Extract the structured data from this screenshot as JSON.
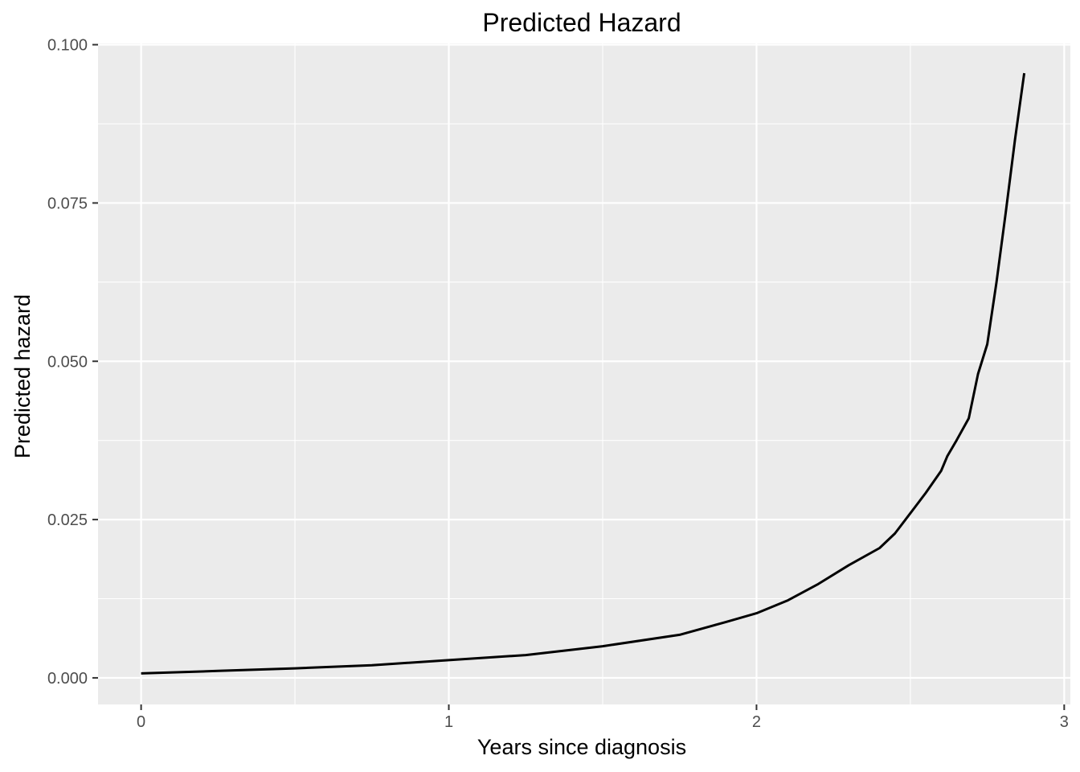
{
  "chart_data": {
    "type": "line",
    "title": "Predicted Hazard",
    "xlabel": "Years since diagnosis",
    "ylabel": "Predicted hazard",
    "xlim": [
      -0.14,
      3.02
    ],
    "ylim": [
      -0.0042,
      0.1002
    ],
    "x_ticks": [
      0,
      1,
      2,
      3
    ],
    "x_tick_labels": [
      "0",
      "1",
      "2",
      "3"
    ],
    "y_ticks": [
      0,
      0.025,
      0.05,
      0.075,
      0.1
    ],
    "y_tick_labels": [
      "0.000",
      "0.025",
      "0.050",
      "0.075",
      "0.100"
    ],
    "grid": true,
    "background": "#ebebeb",
    "line_color": "#000000",
    "series": [
      {
        "x": [
          0,
          0.25,
          0.5,
          0.75,
          1.0,
          1.25,
          1.5,
          1.75,
          1.9,
          2.0,
          2.1,
          2.2,
          2.3,
          2.4,
          2.45,
          2.5,
          2.55,
          2.6,
          2.62,
          2.65,
          2.69,
          2.72,
          2.75,
          2.78,
          2.81,
          2.84,
          2.87
        ],
        "y": [
          0.0007,
          0.0011,
          0.0015,
          0.002,
          0.0028,
          0.0036,
          0.005,
          0.0068,
          0.0088,
          0.0102,
          0.0122,
          0.0148,
          0.0178,
          0.0205,
          0.0228,
          0.026,
          0.0292,
          0.0327,
          0.035,
          0.0375,
          0.041,
          0.048,
          0.0527,
          0.0625,
          0.0735,
          0.085,
          0.0955
        ]
      }
    ]
  }
}
